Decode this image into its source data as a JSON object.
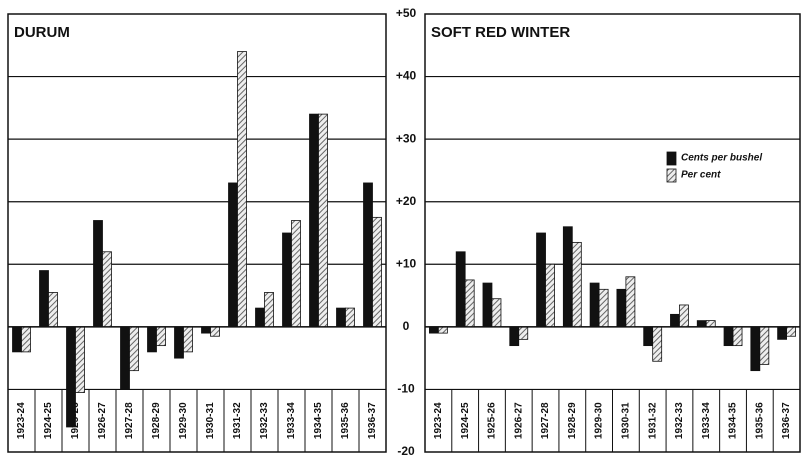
{
  "chart_data": [
    {
      "type": "bar",
      "title": "DURUM",
      "categories": [
        "1923-24",
        "1924-25",
        "1925-26",
        "1926-27",
        "1927-28",
        "1928-29",
        "1929-30",
        "1930-31",
        "1931-32",
        "1932-33",
        "1933-34",
        "1934-35",
        "1935-36",
        "1936-37"
      ],
      "series": [
        {
          "color": "#111111",
          "values": [
            -4,
            9,
            -16,
            17,
            -10,
            -4,
            -5,
            -1,
            23,
            3,
            15,
            34,
            3,
            23
          ]
        },
        {
          "color": "#666666",
          "values": [
            -4,
            5.5,
            -10.5,
            12,
            -7,
            -3,
            -4,
            -1.5,
            44,
            5.5,
            17,
            34,
            3,
            17.5
          ]
        }
      ],
      "ylim": [
        -20,
        50
      ],
      "yticks": [
        {
          "value": 50,
          "label": "+50"
        },
        {
          "value": 40,
          "label": "+40"
        },
        {
          "value": 30,
          "label": "+30"
        },
        {
          "value": 20,
          "label": "+20"
        },
        {
          "value": 10,
          "label": "+10"
        },
        0,
        -10,
        -20
      ],
      "grid": true
    },
    {
      "type": "bar",
      "title": "SOFT RED WINTER",
      "categories": [
        "1923-24",
        "1924-25",
        "1925-26",
        "1926-27",
        "1927-28",
        "1928-29",
        "1929-30",
        "1930-31",
        "1931-32",
        "1932-33",
        "1933-34",
        "1934-35",
        "1935-36",
        "1936-37"
      ],
      "series": [
        {
          "name": "Cents per bushel",
          "color": "#111111",
          "values": [
            -1,
            12,
            7,
            -3,
            15,
            16,
            7,
            6,
            -3,
            2,
            1,
            -3,
            -7,
            -2
          ]
        },
        {
          "name": "Per cent",
          "color": "#666666",
          "values": [
            -1,
            7.5,
            4.5,
            -2,
            10,
            13.5,
            6,
            8,
            -5.5,
            3.5,
            1,
            -3,
            -6,
            -1.5
          ]
        }
      ],
      "ylim": [
        -20,
        50
      ],
      "grid": true
    }
  ]
}
